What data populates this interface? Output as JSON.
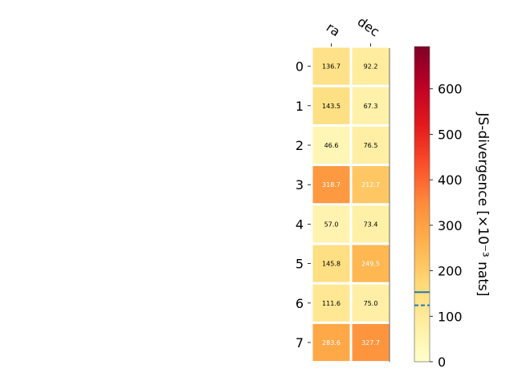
{
  "chart_data": {
    "type": "heatmap",
    "title": "",
    "columns": [
      "ra",
      "dec"
    ],
    "rows": [
      "0",
      "1",
      "2",
      "3",
      "4",
      "5",
      "6",
      "7"
    ],
    "values": [
      [
        136.7,
        92.2
      ],
      [
        143.5,
        67.3
      ],
      [
        46.6,
        76.5
      ],
      [
        318.7,
        212.7
      ],
      [
        57.0,
        73.4
      ],
      [
        145.8,
        249.5
      ],
      [
        111.6,
        75.0
      ],
      [
        283.6,
        327.7
      ]
    ],
    "value_labels": [
      [
        "136.7",
        "92.2"
      ],
      [
        "143.5",
        "67.3"
      ],
      [
        "46.6",
        "76.5"
      ],
      [
        "318.7",
        "212.7"
      ],
      [
        "57.0",
        "73.4"
      ],
      [
        "145.8",
        "249.5"
      ],
      [
        "111.6",
        "75.0"
      ],
      [
        "283.6",
        "327.7"
      ]
    ],
    "colorbar": {
      "label": "JS-divergence [×10⁻³ nats]",
      "range": [
        0,
        693
      ],
      "ticks": [
        0,
        100,
        200,
        300,
        400,
        500,
        600
      ],
      "tick_labels": [
        "0",
        "100",
        "200",
        "300",
        "400",
        "500",
        "600"
      ],
      "colormap": "YlOrRd",
      "markers": [
        {
          "value": 153,
          "style": "solid",
          "color": "#1f77b4"
        },
        {
          "value": 124,
          "style": "dashed",
          "color": "#1f77b4"
        }
      ]
    }
  }
}
